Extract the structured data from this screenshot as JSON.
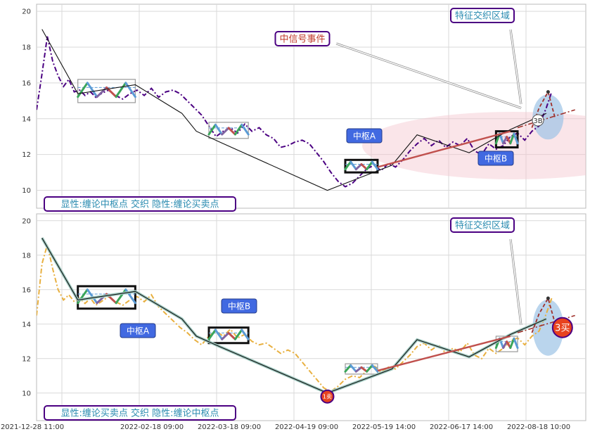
{
  "chart_data": [
    {
      "type": "line",
      "panel": "top",
      "ylim": [
        9,
        20.4
      ],
      "yticks": [
        10,
        12,
        14,
        16,
        18,
        20
      ],
      "grid": true,
      "price_color": "#4b0082",
      "price": [
        [
          0,
          14.5
        ],
        [
          3,
          16.5
        ],
        [
          6,
          18.6
        ],
        [
          9,
          17.2
        ],
        [
          12,
          16.4
        ],
        [
          15,
          15.8
        ],
        [
          18,
          16.2
        ],
        [
          21,
          15.5
        ],
        [
          24,
          15.6
        ],
        [
          27,
          15.3
        ],
        [
          30,
          15.5
        ],
        [
          33,
          15.2
        ],
        [
          36,
          15.4
        ],
        [
          40,
          15.6
        ],
        [
          44,
          15.3
        ],
        [
          48,
          15.1
        ],
        [
          52,
          15.4
        ],
        [
          56,
          15.6
        ],
        [
          60,
          15.3
        ],
        [
          64,
          15.7
        ],
        [
          68,
          15.2
        ],
        [
          72,
          15.5
        ],
        [
          76,
          15.6
        ],
        [
          80,
          15.4
        ],
        [
          84,
          15.0
        ],
        [
          88,
          14.6
        ],
        [
          92,
          14.2
        ],
        [
          96,
          13.6
        ],
        [
          100,
          13.0
        ],
        [
          104,
          13.3
        ],
        [
          108,
          13.5
        ],
        [
          112,
          13.2
        ],
        [
          116,
          13.7
        ],
        [
          120,
          13.3
        ],
        [
          124,
          13.5
        ],
        [
          128,
          13.1
        ],
        [
          132,
          12.9
        ],
        [
          136,
          12.4
        ],
        [
          140,
          12.5
        ],
        [
          144,
          12.7
        ],
        [
          148,
          12.8
        ],
        [
          152,
          12.6
        ],
        [
          156,
          12.1
        ],
        [
          160,
          11.6
        ],
        [
          164,
          11.0
        ],
        [
          168,
          10.5
        ],
        [
          172,
          10.2
        ],
        [
          176,
          10.4
        ],
        [
          180,
          10.8
        ],
        [
          184,
          11.2
        ],
        [
          188,
          11.4
        ],
        [
          192,
          11.1
        ],
        [
          196,
          11.5
        ],
        [
          200,
          11.3
        ],
        [
          204,
          11.7
        ],
        [
          208,
          12.2
        ],
        [
          212,
          12.6
        ],
        [
          216,
          12.9
        ],
        [
          220,
          12.5
        ],
        [
          224,
          12.8
        ],
        [
          228,
          12.4
        ],
        [
          232,
          12.7
        ],
        [
          236,
          12.5
        ],
        [
          240,
          12.9
        ],
        [
          244,
          12.2
        ],
        [
          248,
          12.0
        ],
        [
          252,
          12.6
        ],
        [
          256,
          12.3
        ],
        [
          260,
          12.5
        ],
        [
          264,
          13.0
        ],
        [
          268,
          13.2
        ],
        [
          272,
          12.8
        ],
        [
          276,
          13.3
        ],
        [
          280,
          13.6
        ],
        [
          284,
          14.6
        ],
        [
          287,
          15.5
        ]
      ],
      "bi": [
        [
          3,
          19.0
        ],
        [
          23,
          15.4
        ],
        [
          55,
          15.9
        ],
        [
          81,
          14.3
        ],
        [
          89,
          13.3
        ],
        [
          102,
          12.7
        ],
        [
          162,
          10.0
        ],
        [
          198,
          11.4
        ],
        [
          212,
          13.1
        ],
        [
          241,
          12.1
        ],
        [
          264,
          13.4
        ],
        [
          284,
          14.3
        ]
      ],
      "zhongshu_boxes": [
        {
          "x": [
            23,
            55
          ],
          "y": [
            14.9,
            16.2
          ]
        },
        {
          "x": [
            96,
            118
          ],
          "y": [
            12.9,
            13.8
          ]
        },
        {
          "x": [
            172,
            190
          ],
          "y": [
            11.0,
            11.7
          ]
        },
        {
          "x": [
            256,
            268
          ],
          "y": [
            12.4,
            13.3
          ]
        }
      ],
      "bi_forecast": [
        [
          268,
          13.5
        ],
        [
          300,
          14.5
        ]
      ],
      "ellipse_center": [
        250,
        12.5
      ],
      "point_label": "3B",
      "annotations": [
        {
          "text": "中信号事件",
          "arrow": [
            [
              167,
              18.2
            ],
            [
              270,
              14.6
            ]
          ]
        },
        {
          "text": "中枢A"
        },
        {
          "text": "中枢B"
        },
        {
          "text": "特征交织区域"
        }
      ],
      "legend": "显性:缠论中枢点 交织 隐性:缠论买卖点"
    },
    {
      "type": "line",
      "panel": "bottom",
      "ylim": [
        8.4,
        20.4
      ],
      "yticks": [
        10,
        12,
        14,
        16,
        18,
        20
      ],
      "xticks": [
        "2021-12-28 11:00",
        "2022-02-18 09:00",
        "2022-03-18 09:00",
        "2022-04-19 09:00",
        "2022-05-19 14:00",
        "2022-06-17 14:00",
        "2022-08-18 10:00"
      ],
      "grid": true,
      "price_color": "#e8b040",
      "price": [
        [
          0,
          14.5
        ],
        [
          3,
          17.5
        ],
        [
          6,
          18.6
        ],
        [
          9,
          17.2
        ],
        [
          12,
          16.0
        ],
        [
          15,
          15.4
        ],
        [
          18,
          15.7
        ],
        [
          21,
          15.3
        ],
        [
          24,
          15.5
        ],
        [
          27,
          15.2
        ],
        [
          30,
          15.5
        ],
        [
          33,
          15.1
        ],
        [
          36,
          15.3
        ],
        [
          40,
          15.6
        ],
        [
          44,
          15.3
        ],
        [
          48,
          15.1
        ],
        [
          52,
          15.4
        ],
        [
          56,
          15.6
        ],
        [
          60,
          15.3
        ],
        [
          64,
          15.7
        ],
        [
          68,
          15.0
        ],
        [
          72,
          14.6
        ],
        [
          76,
          14.2
        ],
        [
          80,
          13.8
        ],
        [
          84,
          13.5
        ],
        [
          88,
          13.1
        ],
        [
          92,
          12.8
        ],
        [
          96,
          13.3
        ],
        [
          100,
          13.6
        ],
        [
          104,
          13.3
        ],
        [
          108,
          13.7
        ],
        [
          112,
          13.2
        ],
        [
          116,
          13.4
        ],
        [
          120,
          13.0
        ],
        [
          124,
          12.8
        ],
        [
          128,
          12.9
        ],
        [
          132,
          12.6
        ],
        [
          136,
          12.3
        ],
        [
          140,
          12.5
        ],
        [
          144,
          12.3
        ],
        [
          148,
          11.8
        ],
        [
          152,
          11.3
        ],
        [
          156,
          10.8
        ],
        [
          160,
          10.3
        ],
        [
          164,
          10.1
        ],
        [
          168,
          10.4
        ],
        [
          172,
          10.8
        ],
        [
          176,
          11.0
        ],
        [
          180,
          10.9
        ],
        [
          184,
          11.3
        ],
        [
          188,
          11.6
        ],
        [
          192,
          11.2
        ],
        [
          196,
          11.5
        ],
        [
          200,
          11.4
        ],
        [
          204,
          11.8
        ],
        [
          208,
          12.2
        ],
        [
          212,
          12.7
        ],
        [
          216,
          12.9
        ],
        [
          220,
          12.5
        ],
        [
          224,
          12.8
        ],
        [
          228,
          12.3
        ],
        [
          232,
          12.6
        ],
        [
          236,
          12.4
        ],
        [
          240,
          12.9
        ],
        [
          244,
          12.2
        ],
        [
          248,
          12.0
        ],
        [
          252,
          12.6
        ],
        [
          256,
          12.3
        ],
        [
          260,
          12.6
        ],
        [
          264,
          13.0
        ],
        [
          268,
          13.2
        ],
        [
          272,
          12.8
        ],
        [
          276,
          13.3
        ],
        [
          280,
          13.6
        ],
        [
          284,
          14.6
        ],
        [
          287,
          15.5
        ]
      ],
      "bi": [
        [
          3,
          19.0
        ],
        [
          23,
          15.4
        ],
        [
          55,
          15.9
        ],
        [
          81,
          14.3
        ],
        [
          89,
          13.3
        ],
        [
          102,
          12.7
        ],
        [
          162,
          10.0
        ],
        [
          198,
          11.4
        ],
        [
          212,
          13.1
        ],
        [
          241,
          12.1
        ],
        [
          264,
          13.4
        ],
        [
          284,
          14.3
        ]
      ],
      "zhongshu_boxes": [
        {
          "x": [
            23,
            55
          ],
          "y": [
            14.9,
            16.2
          ]
        },
        {
          "x": [
            96,
            118
          ],
          "y": [
            12.9,
            13.8
          ]
        },
        {
          "x": [
            172,
            190
          ],
          "y": [
            11.1,
            11.7
          ]
        },
        {
          "x": [
            256,
            268
          ],
          "y": [
            12.4,
            13.3
          ]
        }
      ],
      "bi_forecast": [
        [
          268,
          13.5
        ],
        [
          300,
          14.5
        ]
      ],
      "ellipse_center": [
        275,
        13.8
      ],
      "markers": [
        {
          "label": "1卖",
          "x": 162,
          "y": 9.8
        },
        {
          "label": "3买",
          "x": 293,
          "y": 13.8
        }
      ],
      "annotations": [
        {
          "text": "中枢A"
        },
        {
          "text": "中枢B"
        },
        {
          "text": "特征交织区域"
        }
      ],
      "legend": "显性:缠论买卖点 交织 隐性:缠论中枢点"
    }
  ],
  "colors": {
    "bi": "#111111",
    "seg_red": "#c0504d",
    "seg_green": "#3aa55a",
    "seg_blue": "#5b9bd5",
    "seg_purple": "#8064a2",
    "badge": "#4169e1",
    "frame": "#4b0082",
    "ellipse_pink": "#f5c6cf",
    "ellipse_blue": "#9cc3e6"
  }
}
